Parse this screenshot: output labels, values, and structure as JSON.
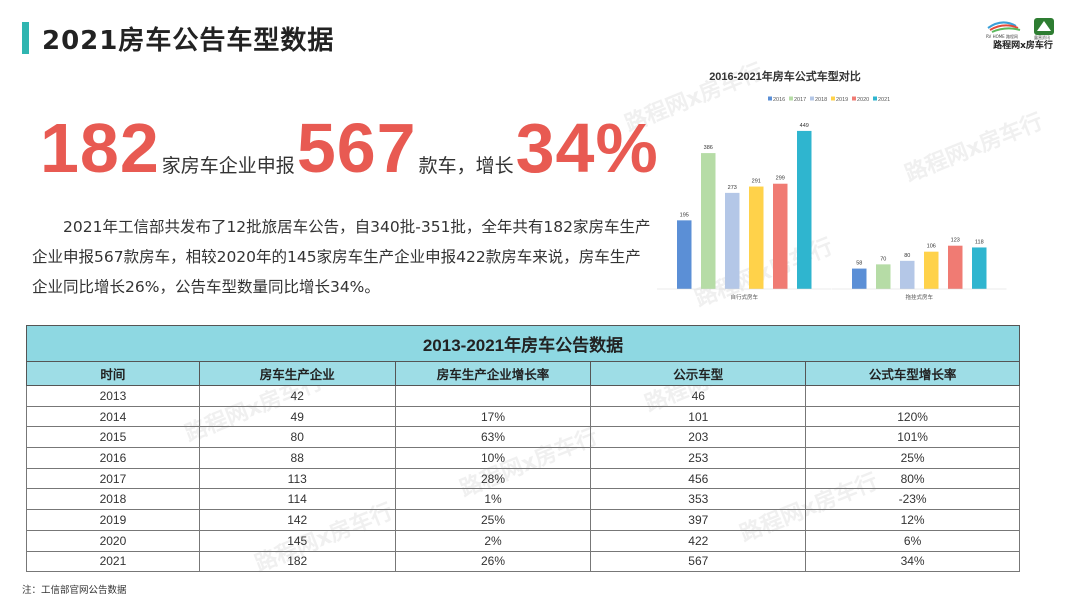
{
  "page": {
    "title": "2021房车公告车型数据",
    "logo_caption": "路程网x房车行",
    "logo_small_left": "RV HOME 路程网",
    "logo_small_right": "露营资讯"
  },
  "headline": {
    "num1": "182",
    "text1": "家房车企业申报",
    "num2": "567",
    "text2": "款车，增长",
    "num3": "34%"
  },
  "description": "2021年工信部共发布了12批旅居车公告，自340批-351批，全年共有182家房车生产企业申报567款房车，相较2020年的145家房车生产企业申报422款房车来说，房车生产企业同比增长26%，公告车型数量同比增长34%。",
  "watermark": "路程网x房车行",
  "chart_data": {
    "type": "bar",
    "title": "2016-2021年房车公式车型对比",
    "categories": [
      "自行式房车",
      "拖挂式房车"
    ],
    "series": [
      {
        "name": "2016",
        "color": "#5b8fd6",
        "values": [
          195,
          58
        ]
      },
      {
        "name": "2017",
        "color": "#b6dca6",
        "values": [
          386,
          70
        ]
      },
      {
        "name": "2018",
        "color": "#b4c7e7",
        "values": [
          273,
          80
        ]
      },
      {
        "name": "2019",
        "color": "#ffd24a",
        "values": [
          291,
          106
        ]
      },
      {
        "name": "2020",
        "color": "#f07b73",
        "values": [
          299,
          123
        ]
      },
      {
        "name": "2021",
        "color": "#2fb5cf",
        "values": [
          449,
          118
        ]
      }
    ],
    "ylim": [
      0,
      480
    ],
    "legend": "top",
    "grid": false
  },
  "table": {
    "title": "2013-2021年房车公告数据",
    "headers": [
      "时间",
      "房车生产企业",
      "房车生产企业增长率",
      "公示车型",
      "公式车型增长率"
    ],
    "rows": [
      [
        "2013",
        "42",
        "",
        "46",
        ""
      ],
      [
        "2014",
        "49",
        "17%",
        "101",
        "120%"
      ],
      [
        "2015",
        "80",
        "63%",
        "203",
        "101%"
      ],
      [
        "2016",
        "88",
        "10%",
        "253",
        "25%"
      ],
      [
        "2017",
        "113",
        "28%",
        "456",
        "80%"
      ],
      [
        "2018",
        "114",
        "1%",
        "353",
        "-23%"
      ],
      [
        "2019",
        "142",
        "25%",
        "397",
        "12%"
      ],
      [
        "2020",
        "145",
        "2%",
        "422",
        "6%"
      ],
      [
        "2021",
        "182",
        "26%",
        "567",
        "34%"
      ]
    ]
  },
  "footnote": "注：工信部官网公告数据"
}
